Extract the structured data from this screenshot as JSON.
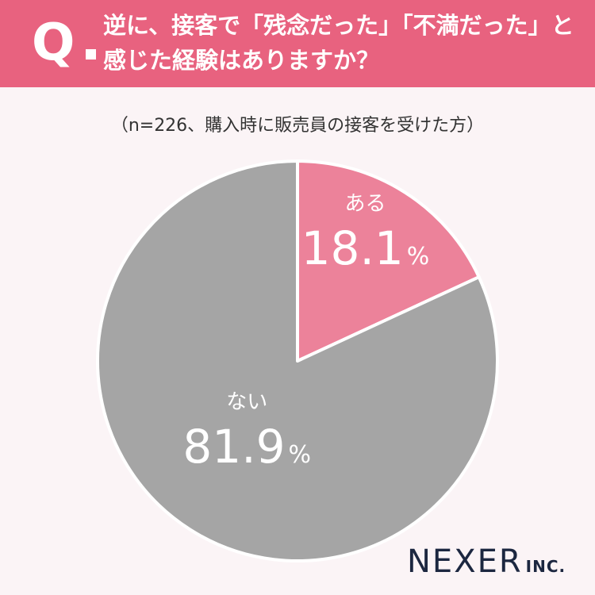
{
  "header": {
    "q_mark": "Q",
    "line1": "逆に、接客で「残念だった」「不満だった」と",
    "line2": "感じた経験はありますか？"
  },
  "sample_note": "（n=226、購入時に販売員の接客を受けた方）",
  "chart_data": {
    "type": "pie",
    "categories": [
      "ある",
      "ない"
    ],
    "values": [
      18.1,
      81.9
    ],
    "value_labels": [
      "18.1",
      "81.9"
    ],
    "unit": "%",
    "colors": [
      "#ec829a",
      "#a5a5a5"
    ],
    "start": "top, clockwise"
  },
  "logo": {
    "main": "NEXER",
    "suffix": "INC."
  }
}
